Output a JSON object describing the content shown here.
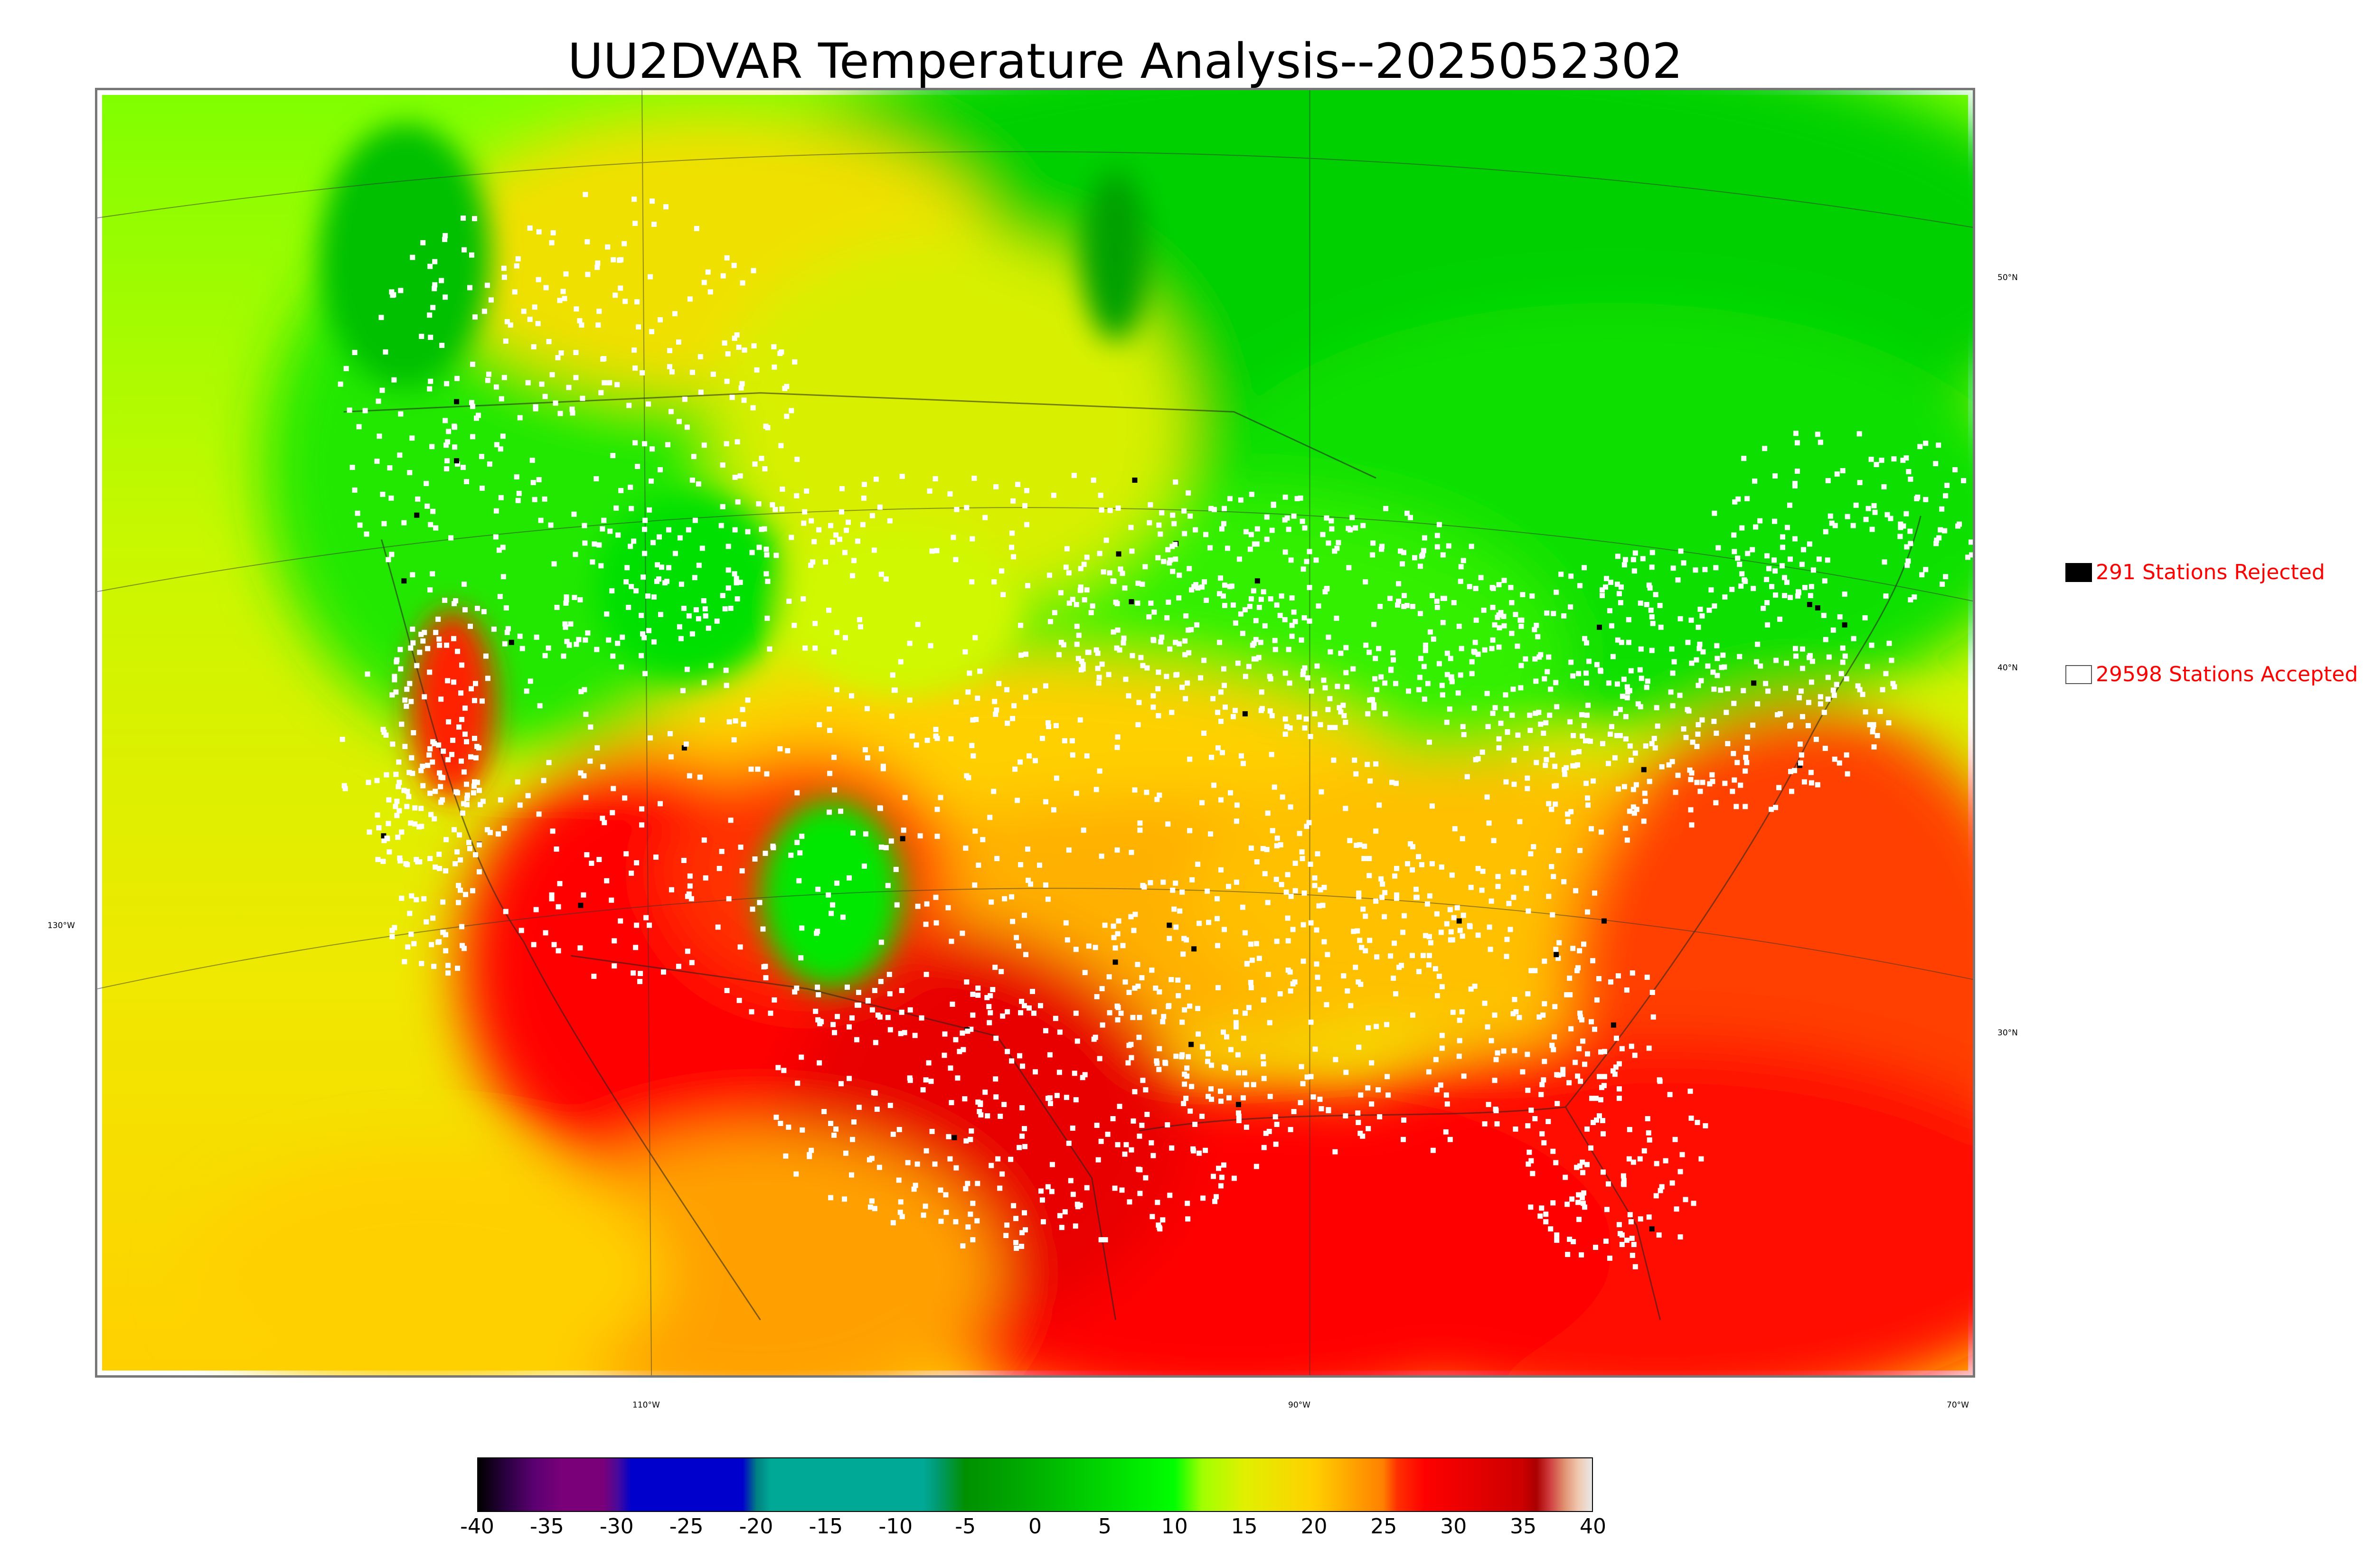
{
  "title": "UU2DVAR Temperature Analysis--2025052302",
  "legend": {
    "rejected": {
      "label": "291 Stations Rejected",
      "swatch_color": "#000000"
    },
    "accepted": {
      "label": "29598 Stations Accepted",
      "swatch_color": "#ffffff"
    }
  },
  "graticule": {
    "lat_labels": [
      "50°N",
      "40°N",
      "30°N"
    ],
    "lon_labels": [
      "130°W",
      "110°W",
      "90°W",
      "70°W"
    ]
  },
  "colorbar": {
    "ticks": [
      "-40",
      "-35",
      "-30",
      "-25",
      "-20",
      "-15",
      "-10",
      "-5",
      "0",
      "5",
      "10",
      "15",
      "20",
      "25",
      "30",
      "35",
      "40"
    ],
    "range": [
      -40,
      40
    ],
    "stops": [
      {
        "v": -40,
        "c": "#000000"
      },
      {
        "v": -38,
        "c": "#2a0040"
      },
      {
        "v": -36,
        "c": "#5a0070"
      },
      {
        "v": -34,
        "c": "#7a007a"
      },
      {
        "v": -31,
        "c": "#7a007a"
      },
      {
        "v": -30,
        "c": "#4a0a9a"
      },
      {
        "v": -29,
        "c": "#0000cc"
      },
      {
        "v": -21,
        "c": "#0000cc"
      },
      {
        "v": -20,
        "c": "#008080"
      },
      {
        "v": -19,
        "c": "#00a896"
      },
      {
        "v": -8,
        "c": "#00a896"
      },
      {
        "v": -7,
        "c": "#009a70"
      },
      {
        "v": -5,
        "c": "#009000"
      },
      {
        "v": 0,
        "c": "#00b000"
      },
      {
        "v": 10,
        "c": "#00ff00"
      },
      {
        "v": 12,
        "c": "#a0ff00"
      },
      {
        "v": 15,
        "c": "#e0f000"
      },
      {
        "v": 20,
        "c": "#ffd000"
      },
      {
        "v": 25,
        "c": "#ff8000"
      },
      {
        "v": 26,
        "c": "#ff3000"
      },
      {
        "v": 28,
        "c": "#ff0000"
      },
      {
        "v": 35,
        "c": "#cc0000"
      },
      {
        "v": 36,
        "c": "#aa0000"
      },
      {
        "v": 37,
        "c": "#d04040"
      },
      {
        "v": 38,
        "c": "#e09070"
      },
      {
        "v": 39,
        "c": "#f0c8b0"
      },
      {
        "v": 40,
        "c": "#e8e8e8"
      }
    ]
  },
  "colors": {
    "cold_green": "#00c000",
    "cool_green": "#30ff00",
    "mild_yellow": "#e0ff00",
    "warm_orange": "#ffb000",
    "hot_red": "#ff2000",
    "extreme_red": "#e00000"
  }
}
